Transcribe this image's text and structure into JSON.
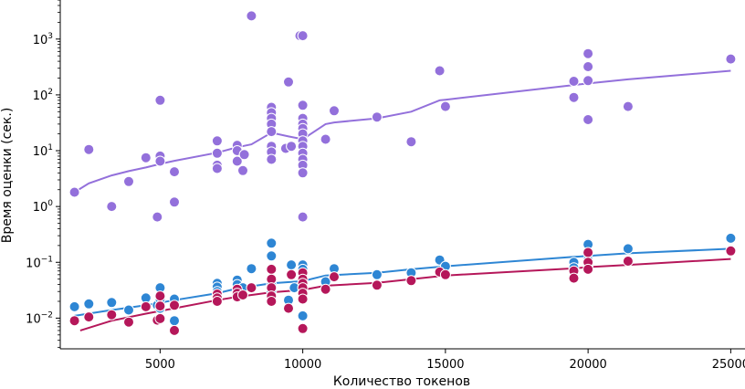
{
  "chart_data": {
    "type": "scatter",
    "title": "",
    "xlabel": "Количество токенов",
    "ylabel": "Время оценки (сек.)",
    "xlim": [
      1500,
      25500
    ],
    "ylim_log10": [
      -2.55,
      3.7
    ],
    "yscale": "log",
    "grid": false,
    "legend": "none",
    "x_ticks": [
      5000,
      10000,
      15000,
      20000,
      25000
    ],
    "x_tick_labels": [
      "5000",
      "10000",
      "15000",
      "20000",
      "25000"
    ],
    "y_ticks_log10": [
      -2,
      -1,
      0,
      1,
      2,
      3
    ],
    "y_tick_labels": [
      {
        "base": "10",
        "exp": "−2"
      },
      {
        "base": "10",
        "exp": "−1"
      },
      {
        "base": "10",
        "exp": "0"
      },
      {
        "base": "10",
        "exp": "1"
      },
      {
        "base": "10",
        "exp": "2"
      },
      {
        "base": "10",
        "exp": "3"
      }
    ],
    "series": [
      {
        "name": "purple",
        "color": "#9370db",
        "points": [
          [
            2000,
            1.8
          ],
          [
            2500,
            10.5
          ],
          [
            3300,
            1.0
          ],
          [
            3900,
            2.8
          ],
          [
            4500,
            7.5
          ],
          [
            4900,
            0.65
          ],
          [
            5000,
            80
          ],
          [
            5000,
            8.0
          ],
          [
            5000,
            6.5
          ],
          [
            5500,
            4.2
          ],
          [
            5500,
            1.2
          ],
          [
            7000,
            15
          ],
          [
            7000,
            5.5
          ],
          [
            7000,
            4.8
          ],
          [
            7000,
            9.0
          ],
          [
            7700,
            12.5
          ],
          [
            7700,
            10
          ],
          [
            7700,
            6.5
          ],
          [
            7900,
            4.4
          ],
          [
            7950,
            8.5
          ],
          [
            8200,
            2600
          ],
          [
            8900,
            60
          ],
          [
            8900,
            48
          ],
          [
            8900,
            38
          ],
          [
            8900,
            30
          ],
          [
            8900,
            22
          ],
          [
            8900,
            12
          ],
          [
            8900,
            9.5
          ],
          [
            8900,
            7
          ],
          [
            9400,
            11
          ],
          [
            9500,
            170
          ],
          [
            9600,
            12
          ],
          [
            9900,
            1150
          ],
          [
            10000,
            1150
          ],
          [
            10000,
            65
          ],
          [
            10000,
            38
          ],
          [
            10000,
            30
          ],
          [
            10000,
            25
          ],
          [
            10000,
            20
          ],
          [
            10000,
            15
          ],
          [
            10000,
            12
          ],
          [
            10000,
            9
          ],
          [
            10000,
            7
          ],
          [
            10000,
            5.5
          ],
          [
            10000,
            4
          ],
          [
            10000,
            0.65
          ],
          [
            10800,
            16
          ],
          [
            11100,
            52
          ],
          [
            12600,
            40
          ],
          [
            13800,
            14.5
          ],
          [
            14800,
            270
          ],
          [
            15000,
            62
          ],
          [
            19500,
            175
          ],
          [
            19500,
            90
          ],
          [
            20000,
            550
          ],
          [
            20000,
            320
          ],
          [
            20000,
            180
          ],
          [
            20000,
            36
          ],
          [
            21400,
            62
          ],
          [
            25000,
            440
          ]
        ],
        "trend": [
          [
            2000,
            1.8
          ],
          [
            2500,
            2.6
          ],
          [
            3300,
            3.6
          ],
          [
            3900,
            4.3
          ],
          [
            4500,
            5.0
          ],
          [
            5000,
            5.8
          ],
          [
            5500,
            6.6
          ],
          [
            7000,
            9.2
          ],
          [
            7700,
            11.5
          ],
          [
            8200,
            13
          ],
          [
            8900,
            21
          ],
          [
            9500,
            18
          ],
          [
            10000,
            16
          ],
          [
            10800,
            30
          ],
          [
            11100,
            32
          ],
          [
            12600,
            38
          ],
          [
            13800,
            50
          ],
          [
            14800,
            80
          ],
          [
            15000,
            82
          ],
          [
            19500,
            150
          ],
          [
            20000,
            160
          ],
          [
            21400,
            190
          ],
          [
            25000,
            270
          ]
        ]
      },
      {
        "name": "blue",
        "color": "#2e86d4",
        "points": [
          [
            2000,
            0.016
          ],
          [
            2500,
            0.018
          ],
          [
            3300,
            0.019
          ],
          [
            3900,
            0.014
          ],
          [
            4500,
            0.023
          ],
          [
            4900,
            0.017
          ],
          [
            5000,
            0.035
          ],
          [
            5000,
            0.022
          ],
          [
            5000,
            0.015
          ],
          [
            5500,
            0.022
          ],
          [
            5500,
            0.009
          ],
          [
            7000,
            0.042
          ],
          [
            7000,
            0.036
          ],
          [
            7000,
            0.03
          ],
          [
            7700,
            0.048
          ],
          [
            7700,
            0.04
          ],
          [
            7900,
            0.035
          ],
          [
            8200,
            0.077
          ],
          [
            8900,
            0.22
          ],
          [
            8900,
            0.13
          ],
          [
            8900,
            0.05
          ],
          [
            8900,
            0.04
          ],
          [
            8900,
            0.03
          ],
          [
            8900,
            0.02
          ],
          [
            9500,
            0.021
          ],
          [
            9600,
            0.09
          ],
          [
            9700,
            0.035
          ],
          [
            10000,
            0.09
          ],
          [
            10000,
            0.075
          ],
          [
            10000,
            0.06
          ],
          [
            10000,
            0.05
          ],
          [
            10000,
            0.042
          ],
          [
            10000,
            0.035
          ],
          [
            10000,
            0.03
          ],
          [
            10000,
            0.025
          ],
          [
            10000,
            0.011
          ],
          [
            10800,
            0.045
          ],
          [
            11100,
            0.077
          ],
          [
            12600,
            0.06
          ],
          [
            13800,
            0.065
          ],
          [
            14800,
            0.11
          ],
          [
            15000,
            0.085
          ],
          [
            19500,
            0.1
          ],
          [
            19500,
            0.08
          ],
          [
            20000,
            0.21
          ],
          [
            20000,
            0.15
          ],
          [
            20000,
            0.11
          ],
          [
            20000,
            0.09
          ],
          [
            21400,
            0.175
          ],
          [
            25000,
            0.27
          ]
        ],
        "trend": [
          [
            2000,
            0.011
          ],
          [
            3300,
            0.014
          ],
          [
            4500,
            0.017
          ],
          [
            5500,
            0.021
          ],
          [
            7000,
            0.028
          ],
          [
            7700,
            0.034
          ],
          [
            8900,
            0.042
          ],
          [
            10000,
            0.046
          ],
          [
            10800,
            0.058
          ],
          [
            12600,
            0.065
          ],
          [
            13800,
            0.075
          ],
          [
            15000,
            0.085
          ],
          [
            19500,
            0.125
          ],
          [
            20000,
            0.13
          ],
          [
            21400,
            0.145
          ],
          [
            25000,
            0.175
          ]
        ]
      },
      {
        "name": "crimson",
        "color": "#b5175a",
        "points": [
          [
            2000,
            0.009
          ],
          [
            2500,
            0.0105
          ],
          [
            3300,
            0.0115
          ],
          [
            3900,
            0.0085
          ],
          [
            4500,
            0.016
          ],
          [
            4900,
            0.0092
          ],
          [
            5000,
            0.025
          ],
          [
            5000,
            0.0165
          ],
          [
            5000,
            0.0098
          ],
          [
            5500,
            0.017
          ],
          [
            5500,
            0.006
          ],
          [
            7000,
            0.027
          ],
          [
            7000,
            0.023
          ],
          [
            7000,
            0.02
          ],
          [
            7700,
            0.033
          ],
          [
            7700,
            0.028
          ],
          [
            7700,
            0.024
          ],
          [
            7900,
            0.026
          ],
          [
            8200,
            0.035
          ],
          [
            8900,
            0.075
          ],
          [
            8900,
            0.05
          ],
          [
            8900,
            0.035
          ],
          [
            8900,
            0.025
          ],
          [
            8900,
            0.02
          ],
          [
            9500,
            0.015
          ],
          [
            9600,
            0.06
          ],
          [
            10000,
            0.065
          ],
          [
            10000,
            0.05
          ],
          [
            10000,
            0.042
          ],
          [
            10000,
            0.035
          ],
          [
            10000,
            0.028
          ],
          [
            10000,
            0.022
          ],
          [
            10000,
            0.0065
          ],
          [
            10800,
            0.033
          ],
          [
            11100,
            0.055
          ],
          [
            12600,
            0.039
          ],
          [
            13800,
            0.047
          ],
          [
            14800,
            0.067
          ],
          [
            15000,
            0.06
          ],
          [
            19500,
            0.07
          ],
          [
            19500,
            0.052
          ],
          [
            20000,
            0.15
          ],
          [
            20000,
            0.1
          ],
          [
            20000,
            0.075
          ],
          [
            21400,
            0.105
          ],
          [
            25000,
            0.16
          ]
        ],
        "trend": [
          [
            2200,
            0.006
          ],
          [
            3300,
            0.009
          ],
          [
            4500,
            0.012
          ],
          [
            5500,
            0.015
          ],
          [
            7000,
            0.021
          ],
          [
            7700,
            0.024
          ],
          [
            8900,
            0.029
          ],
          [
            10000,
            0.032
          ],
          [
            10800,
            0.038
          ],
          [
            12600,
            0.043
          ],
          [
            13800,
            0.05
          ],
          [
            15000,
            0.058
          ],
          [
            19500,
            0.078
          ],
          [
            20000,
            0.082
          ],
          [
            21400,
            0.09
          ],
          [
            25000,
            0.115
          ]
        ]
      }
    ]
  }
}
